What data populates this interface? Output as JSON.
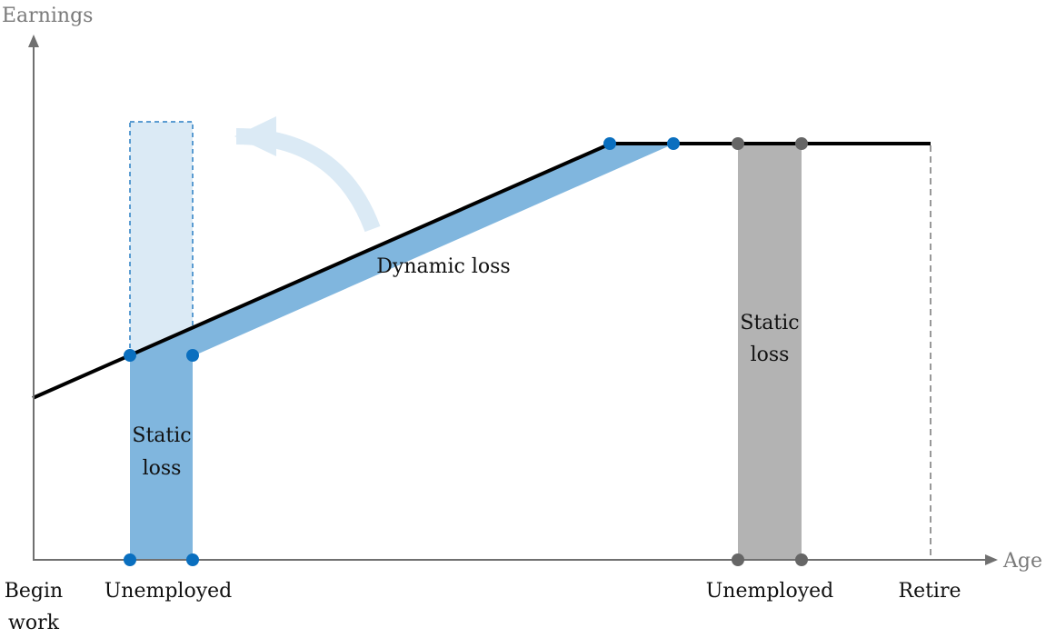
{
  "axes": {
    "y_label": "Earnings",
    "x_label": "Age"
  },
  "x_labels": {
    "begin_line1": "Begin",
    "begin_line2": "work",
    "unemployed_early": "Unemployed",
    "unemployed_late": "Unemployed",
    "retire": "Retire"
  },
  "annotations": {
    "dynamic_loss": "Dynamic loss",
    "static_loss_early_line1": "Static",
    "static_loss_early_line2": "loss",
    "static_loss_late_line1": "Static",
    "static_loss_late_line2": "loss"
  },
  "colors": {
    "axis": "#707070",
    "earnings_line": "#000000",
    "loss_blue": "#80b6de",
    "light_blue": "#dbeaf5",
    "dashed_blue": "#2a7fc4",
    "dot_blue": "#0a6fbf",
    "loss_gray": "#b3b3b3",
    "dot_gray": "#666666",
    "retire_dash": "#777777"
  }
}
